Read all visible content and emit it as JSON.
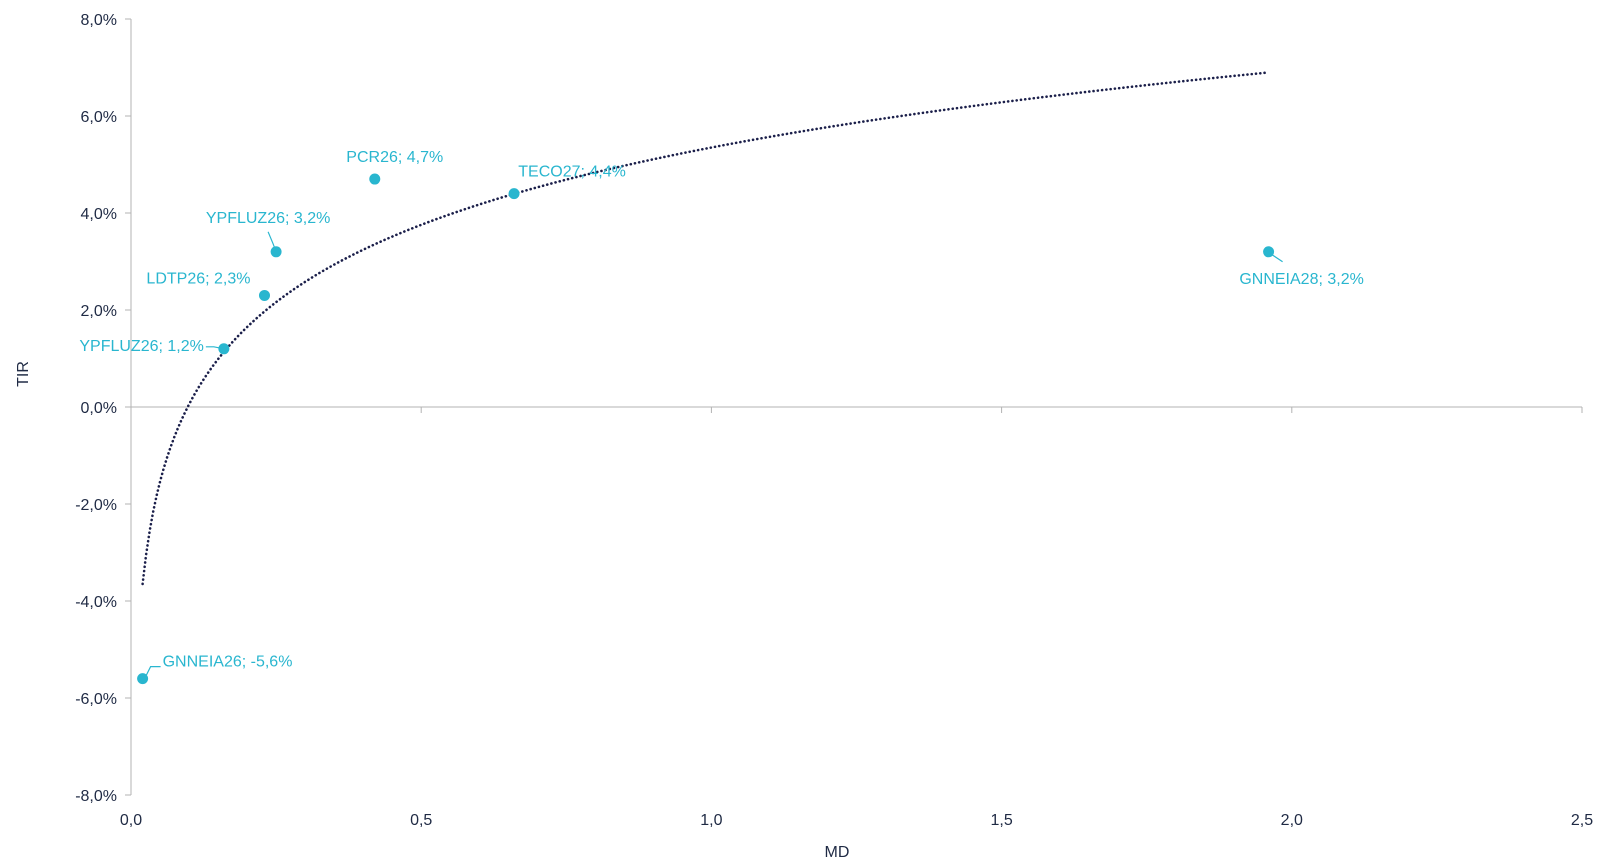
{
  "chart_data": {
    "type": "scatter",
    "title": "",
    "xlabel": "MD",
    "ylabel": "TIR",
    "xlim": [
      0,
      2.5
    ],
    "ylim": [
      -8,
      8
    ],
    "x_ticks": [
      0,
      0.5,
      1.0,
      1.5,
      2.0,
      2.5
    ],
    "x_tick_labels": [
      "0,0",
      "0,5",
      "1,0",
      "1,5",
      "2,0",
      "2,5"
    ],
    "y_ticks": [
      -8,
      -6,
      -4,
      -2,
      0,
      2,
      4,
      6,
      8
    ],
    "y_tick_labels": [
      "-8,0%",
      "-6,0%",
      "-4,0%",
      "-2,0%",
      "0,0%",
      "2,0%",
      "4,0%",
      "6,0%",
      "8,0%"
    ],
    "grid": false,
    "legend": "none",
    "series": [
      {
        "points": [
          {
            "name": "GNNEIA26",
            "x": 0.02,
            "y": -5.6,
            "label": "GNNEIA26; -5,6%"
          },
          {
            "name": "YPFLUZ26",
            "x": 0.16,
            "y": 1.2,
            "label": "YPFLUZ26; 1,2%"
          },
          {
            "name": "LDTP26",
            "x": 0.23,
            "y": 2.3,
            "label": "LDTP26; 2,3%"
          },
          {
            "name": "YPFLUZ26",
            "x": 0.25,
            "y": 3.2,
            "label": "YPFLUZ26; 3,2%"
          },
          {
            "name": "PCR26",
            "x": 0.42,
            "y": 4.7,
            "label": "PCR26; 4,7%"
          },
          {
            "name": "TECO27",
            "x": 0.66,
            "y": 4.4,
            "label": "TECO27; 4,4%"
          },
          {
            "name": "GNNEIA28",
            "x": 1.96,
            "y": 3.2,
            "label": "GNNEIA28; 3,2%"
          }
        ]
      }
    ],
    "trendline": {
      "type": "logarithmic",
      "style": "dotted",
      "a": 5.35,
      "b": 2.3,
      "x_range": [
        0.02,
        1.96
      ]
    },
    "colors": {
      "points": "#29b6cf",
      "labels": "#29b6cf",
      "trendline": "#1b1f4a",
      "axis": "#b3b3b3",
      "text": "#1f2a44"
    }
  }
}
